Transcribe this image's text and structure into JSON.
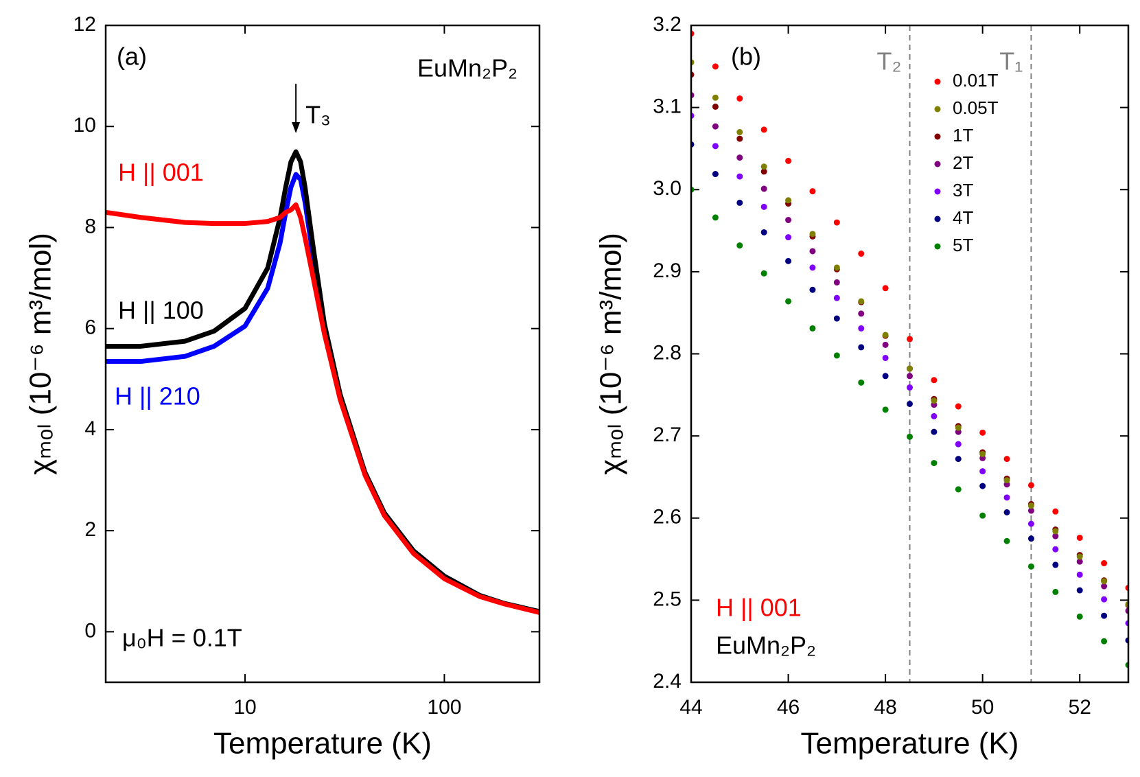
{
  "chart_data": [
    {
      "type": "line",
      "xlabel": "Temperature (K)",
      "ylabel": "χₘₒₗ (10⁻⁶ m³/mol)",
      "xscale": "log",
      "xlim": [
        2,
        300
      ],
      "xticks": [
        10,
        100
      ],
      "ylim": [
        -1,
        12
      ],
      "yticks": [
        0,
        2,
        4,
        6,
        8,
        10,
        12
      ],
      "x": [
        2,
        3,
        5,
        7,
        10,
        13,
        15,
        16,
        17,
        18,
        19,
        20,
        22,
        25,
        30,
        40,
        50,
        70,
        100,
        150,
        200,
        300
      ],
      "series": [
        {
          "name": "H || 001",
          "color": "#ff0000",
          "values": [
            8.3,
            8.2,
            8.1,
            8.08,
            8.08,
            8.12,
            8.2,
            8.3,
            8.35,
            8.45,
            8.2,
            7.8,
            7.0,
            5.9,
            4.6,
            3.1,
            2.3,
            1.55,
            1.05,
            0.7,
            0.55,
            0.38
          ]
        },
        {
          "name": "H || 100",
          "color": "#000000",
          "values": [
            5.65,
            5.65,
            5.75,
            5.95,
            6.4,
            7.2,
            8.2,
            8.8,
            9.3,
            9.5,
            9.3,
            8.8,
            7.6,
            6.1,
            4.7,
            3.15,
            2.35,
            1.6,
            1.1,
            0.72,
            0.56,
            0.4
          ]
        },
        {
          "name": "H || 210",
          "color": "#0000ff",
          "values": [
            5.35,
            5.35,
            5.45,
            5.65,
            6.05,
            6.8,
            7.7,
            8.3,
            8.8,
            9.05,
            8.95,
            8.5,
            7.4,
            6.0,
            4.65,
            3.15,
            2.35,
            1.6,
            1.1,
            0.72,
            0.56,
            0.4
          ]
        }
      ],
      "annotations": [
        {
          "text": "(a)"
        },
        {
          "text": "EuMn₂P₂"
        },
        {
          "text": "T₃",
          "x": 18
        },
        {
          "text": "μ₀H = 0.1T"
        }
      ]
    },
    {
      "type": "scatter",
      "xlabel": "Temperature (K)",
      "ylabel": "χₘₒₗ (10⁻⁶ m³/mol)",
      "xlim": [
        44,
        53
      ],
      "xticks": [
        44,
        46,
        48,
        50,
        52
      ],
      "ylim": [
        2.4,
        3.2
      ],
      "yticks": [
        2.4,
        2.5,
        2.6,
        2.7,
        2.8,
        2.9,
        {
          "value": 3,
          "label": "3.0"
        },
        3.1,
        3.2
      ],
      "legend": "upper right",
      "x": [
        44,
        44.5,
        45,
        45.5,
        46,
        46.5,
        47,
        47.5,
        48,
        48.5,
        49,
        49.5,
        50,
        50.5,
        51,
        51.5,
        52,
        52.5,
        53
      ],
      "series": [
        {
          "name": "0.01T",
          "color": "#ff0000",
          "values": [
            3.19,
            3.15,
            3.111,
            3.073,
            3.035,
            2.998,
            2.96,
            2.922,
            2.88,
            2.818,
            2.768,
            2.736,
            2.704,
            2.672,
            2.64,
            2.608,
            2.576,
            2.545,
            2.515
          ]
        },
        {
          "name": "0.05T",
          "color": "#808000",
          "values": [
            3.155,
            3.112,
            3.07,
            3.028,
            2.987,
            2.946,
            2.905,
            2.864,
            2.823,
            2.782,
            2.743,
            2.71,
            2.678,
            2.646,
            2.615,
            2.584,
            2.553,
            2.523,
            2.495
          ]
        },
        {
          "name": "1T",
          "color": "#800000",
          "values": [
            3.14,
            3.101,
            3.062,
            3.022,
            2.983,
            2.943,
            2.903,
            2.863,
            2.822,
            2.782,
            2.745,
            2.712,
            2.68,
            2.648,
            2.617,
            2.586,
            2.555,
            2.524,
            2.494
          ]
        },
        {
          "name": "2T",
          "color": "#800080",
          "values": [
            3.115,
            3.077,
            3.039,
            3.001,
            2.963,
            2.925,
            2.887,
            2.849,
            2.811,
            2.773,
            2.738,
            2.705,
            2.673,
            2.641,
            2.609,
            2.578,
            2.547,
            2.517,
            2.487
          ]
        },
        {
          "name": "3T",
          "color": "#8000ff",
          "values": [
            3.09,
            3.053,
            3.016,
            2.979,
            2.942,
            2.905,
            2.868,
            2.831,
            2.795,
            2.759,
            2.724,
            2.69,
            2.657,
            2.625,
            2.593,
            2.562,
            2.531,
            2.501,
            2.472
          ]
        },
        {
          "name": "4T",
          "color": "#000080",
          "values": [
            3.055,
            3.019,
            2.984,
            2.948,
            2.913,
            2.878,
            2.843,
            2.808,
            2.773,
            2.739,
            2.705,
            2.672,
            2.639,
            2.607,
            2.575,
            2.543,
            2.512,
            2.481,
            2.451
          ]
        },
        {
          "name": "5T",
          "color": "#008000",
          "values": [
            3.0,
            2.966,
            2.932,
            2.898,
            2.864,
            2.831,
            2.798,
            2.765,
            2.732,
            2.699,
            2.667,
            2.635,
            2.603,
            2.572,
            2.541,
            2.51,
            2.48,
            2.45,
            2.421
          ]
        }
      ],
      "vlines": [
        {
          "x": 48.5,
          "label": "T₂",
          "color": "#808080"
        },
        {
          "x": 51,
          "label": "T₁",
          "color": "#808080"
        }
      ],
      "annotations": [
        {
          "text": "(b)"
        },
        {
          "text": "H || 001",
          "color": "#ff0000"
        },
        {
          "text": "EuMn₂P₂"
        }
      ]
    }
  ]
}
